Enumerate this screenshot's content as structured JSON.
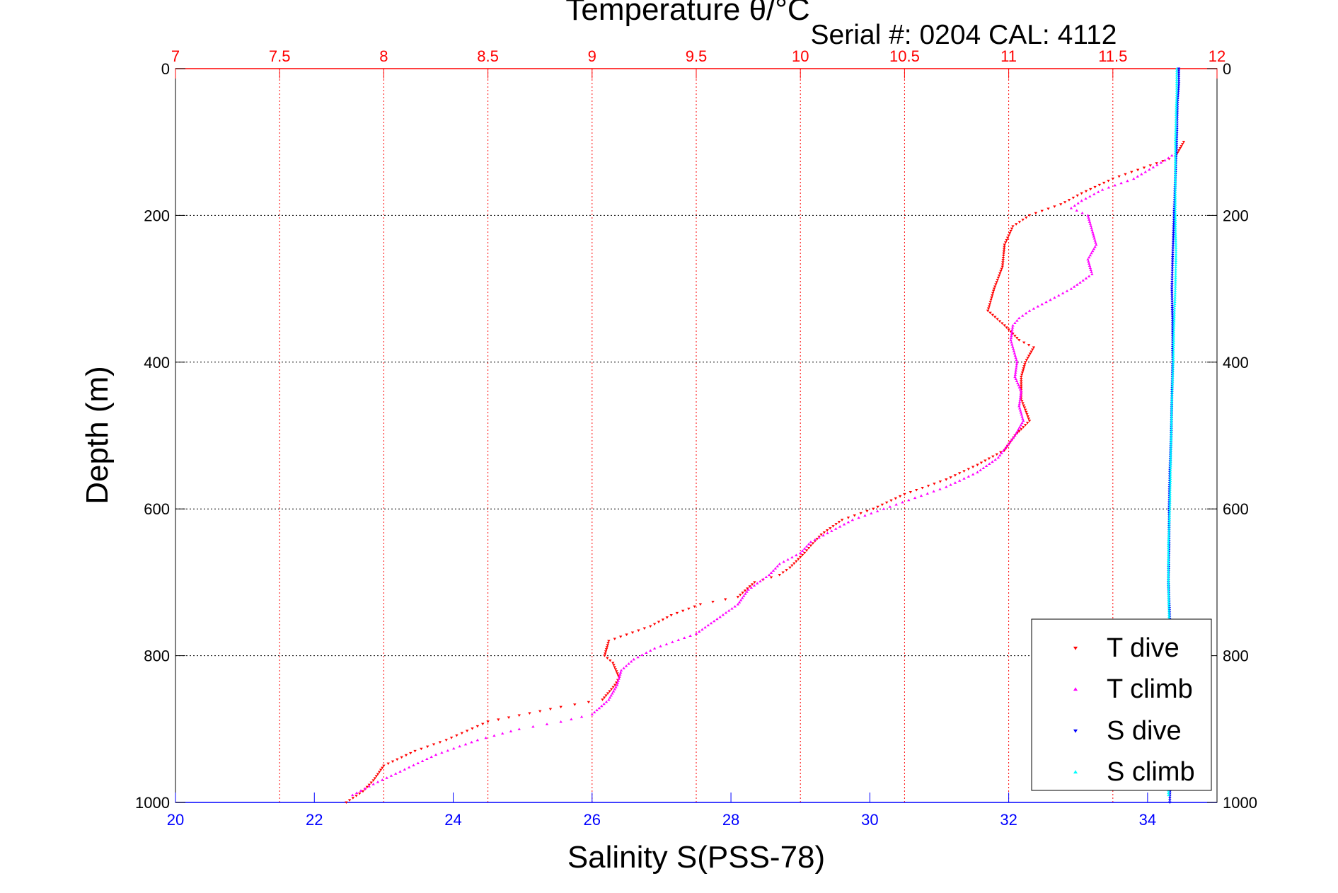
{
  "colors": {
    "t_dive": "#ff0000",
    "t_climb": "#ff00ff",
    "s_dive": "#0000ff",
    "s_climb": "#00ffff",
    "temperature_axis": "#ff0000",
    "salinity_axis": "#0000ff",
    "text": "#000000"
  },
  "chart_data": {
    "type": "scatter",
    "title": "Temperature θ/°C",
    "subtitle": "Serial #: 0204  CAL: 4112",
    "ylabel": "Depth (m)",
    "xlabel_bottom": "Salinity S(PSS-78)",
    "ylim": [
      0,
      1000
    ],
    "y_reversed": true,
    "x_top": {
      "label": "Temperature θ/°C",
      "range": [
        7,
        12
      ],
      "ticks": [
        "7",
        "7.5",
        "8",
        "8.5",
        "9",
        "9.5",
        "10",
        "10.5",
        "11",
        "11.5",
        "12"
      ]
    },
    "x_bottom": {
      "label": "Salinity S(PSS-78)",
      "range": [
        20,
        35
      ],
      "ticks": [
        "20",
        "22",
        "24",
        "26",
        "28",
        "30",
        "32",
        "34"
      ]
    },
    "y_ticks": [
      "0",
      "200",
      "400",
      "600",
      "800",
      "1000"
    ],
    "grid": true,
    "legend": {
      "placement": "bottom-right",
      "entries": [
        "T dive",
        "T climb",
        "S dive",
        "S climb"
      ]
    },
    "series": [
      {
        "name": "T dive",
        "axis": "top",
        "marker": "triangle-down",
        "points": [
          [
            11.84,
            100
          ],
          [
            11.8,
            120
          ],
          [
            11.65,
            135
          ],
          [
            11.5,
            150
          ],
          [
            11.35,
            170
          ],
          [
            11.25,
            185
          ],
          [
            11.1,
            200
          ],
          [
            11.02,
            215
          ],
          [
            10.98,
            240
          ],
          [
            10.97,
            270
          ],
          [
            10.93,
            300
          ],
          [
            10.9,
            330
          ],
          [
            10.98,
            350
          ],
          [
            11.05,
            370
          ],
          [
            11.12,
            380
          ],
          [
            11.08,
            400
          ],
          [
            11.06,
            420
          ],
          [
            11.06,
            450
          ],
          [
            11.1,
            480
          ],
          [
            11.03,
            500
          ],
          [
            10.98,
            520
          ],
          [
            10.85,
            540
          ],
          [
            10.7,
            560
          ],
          [
            10.5,
            580
          ],
          [
            10.35,
            600
          ],
          [
            10.2,
            615
          ],
          [
            10.1,
            635
          ],
          [
            10.05,
            650
          ],
          [
            10.02,
            660
          ],
          [
            9.95,
            680
          ],
          [
            9.9,
            690
          ],
          [
            9.78,
            700
          ],
          [
            9.7,
            720
          ],
          [
            9.52,
            730
          ],
          [
            9.38,
            745
          ],
          [
            9.28,
            760
          ],
          [
            9.08,
            780
          ],
          [
            9.06,
            800
          ],
          [
            9.1,
            810
          ],
          [
            9.13,
            830
          ],
          [
            9.11,
            840
          ],
          [
            9.05,
            860
          ],
          [
            8.85,
            870
          ],
          [
            8.5,
            890
          ],
          [
            8.3,
            915
          ],
          [
            8.15,
            930
          ],
          [
            8.0,
            950
          ],
          [
            7.95,
            970
          ],
          [
            7.9,
            985
          ],
          [
            7.82,
            1000
          ]
        ]
      },
      {
        "name": "T climb",
        "axis": "top",
        "marker": "triangle-up",
        "points": [
          [
            11.8,
            115
          ],
          [
            11.75,
            125
          ],
          [
            11.6,
            150
          ],
          [
            11.45,
            165
          ],
          [
            11.35,
            180
          ],
          [
            11.3,
            190
          ],
          [
            11.38,
            200
          ],
          [
            11.4,
            220
          ],
          [
            11.42,
            240
          ],
          [
            11.38,
            260
          ],
          [
            11.4,
            280
          ],
          [
            11.3,
            300
          ],
          [
            11.2,
            315
          ],
          [
            11.1,
            330
          ],
          [
            11.05,
            340
          ],
          [
            11.02,
            350
          ],
          [
            11.01,
            370
          ],
          [
            11.04,
            400
          ],
          [
            11.03,
            420
          ],
          [
            11.06,
            440
          ],
          [
            11.05,
            460
          ],
          [
            11.07,
            480
          ],
          [
            11.03,
            500
          ],
          [
            10.95,
            530
          ],
          [
            10.85,
            550
          ],
          [
            10.7,
            570
          ],
          [
            10.55,
            585
          ],
          [
            10.4,
            600
          ],
          [
            10.25,
            615
          ],
          [
            10.15,
            630
          ],
          [
            10.05,
            645
          ],
          [
            10.0,
            660
          ],
          [
            9.9,
            675
          ],
          [
            9.85,
            690
          ],
          [
            9.75,
            710
          ],
          [
            9.7,
            730
          ],
          [
            9.6,
            750
          ],
          [
            9.5,
            770
          ],
          [
            9.3,
            790
          ],
          [
            9.2,
            805
          ],
          [
            9.14,
            820
          ],
          [
            9.12,
            840
          ],
          [
            9.08,
            860
          ],
          [
            9.0,
            880
          ],
          [
            8.85,
            890
          ],
          [
            8.65,
            900
          ],
          [
            8.45,
            915
          ],
          [
            8.25,
            935
          ],
          [
            8.1,
            955
          ],
          [
            7.95,
            975
          ],
          [
            7.85,
            990
          ]
        ]
      },
      {
        "name": "S dive",
        "axis": "bottom",
        "marker": "triangle-down",
        "points": [
          [
            34.45,
            0
          ],
          [
            34.45,
            20
          ],
          [
            34.43,
            50
          ],
          [
            34.42,
            100
          ],
          [
            34.4,
            150
          ],
          [
            34.38,
            200
          ],
          [
            34.36,
            260
          ],
          [
            34.35,
            300
          ],
          [
            34.36,
            350
          ],
          [
            34.36,
            400
          ],
          [
            34.35,
            450
          ],
          [
            34.34,
            500
          ],
          [
            34.32,
            550
          ],
          [
            34.31,
            600
          ],
          [
            34.31,
            650
          ],
          [
            34.3,
            700
          ],
          [
            34.32,
            750
          ],
          [
            34.32,
            800
          ],
          [
            34.33,
            850
          ],
          [
            34.34,
            900
          ],
          [
            34.33,
            950
          ],
          [
            34.32,
            1000
          ]
        ]
      },
      {
        "name": "S climb",
        "axis": "bottom",
        "marker": "triangle-up",
        "points": [
          [
            34.42,
            0
          ],
          [
            34.42,
            30
          ],
          [
            34.41,
            60
          ],
          [
            34.4,
            100
          ],
          [
            34.4,
            150
          ],
          [
            34.4,
            200
          ],
          [
            34.41,
            250
          ],
          [
            34.4,
            300
          ],
          [
            34.38,
            350
          ],
          [
            34.37,
            400
          ],
          [
            34.35,
            450
          ],
          [
            34.34,
            500
          ],
          [
            34.33,
            550
          ],
          [
            34.32,
            600
          ],
          [
            34.3,
            650
          ],
          [
            34.3,
            700
          ],
          [
            34.31,
            750
          ],
          [
            34.31,
            800
          ],
          [
            34.32,
            850
          ],
          [
            34.32,
            900
          ],
          [
            34.31,
            950
          ],
          [
            34.3,
            990
          ]
        ]
      }
    ]
  }
}
